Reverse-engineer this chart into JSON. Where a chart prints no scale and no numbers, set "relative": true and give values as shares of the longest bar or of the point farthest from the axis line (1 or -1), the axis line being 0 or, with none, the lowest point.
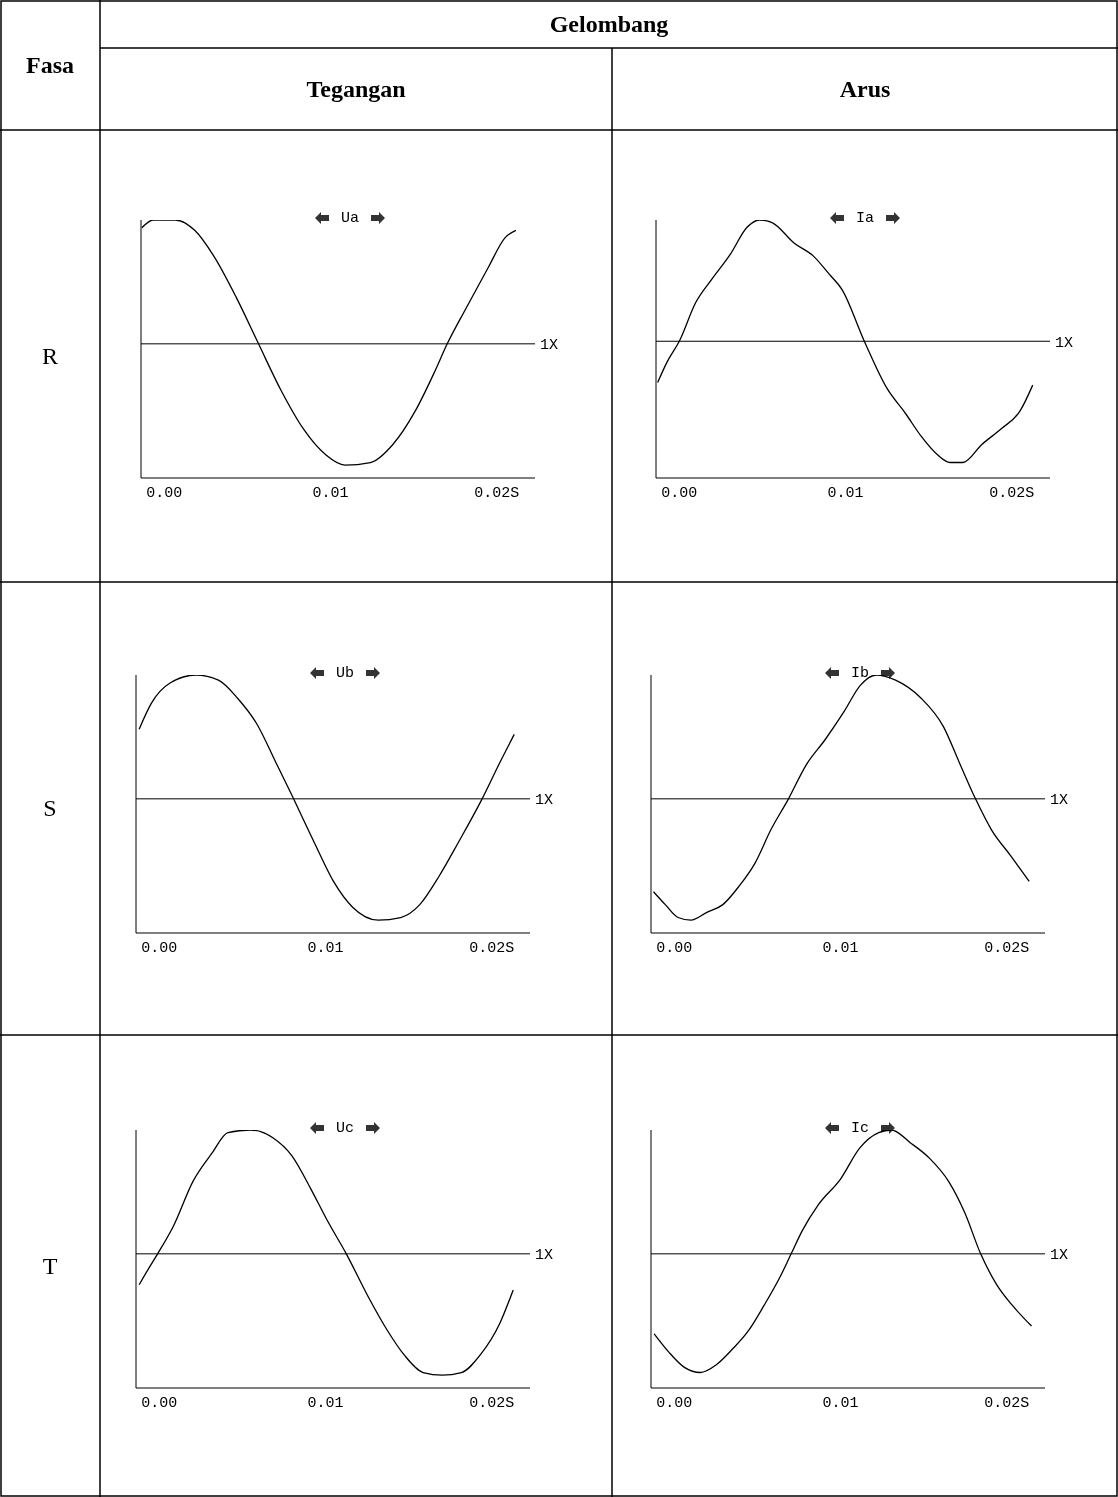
{
  "chart_data": [
    {
      "type": "other",
      "annotations": [
        "Fasa",
        "Gelombang",
        "Tegangan",
        "Arus",
        "R",
        "S",
        "T"
      ]
    },
    {
      "type": "line",
      "title": "Ua",
      "relative": true,
      "color": "#000000",
      "marker": "none",
      "grid": false,
      "xlim": [
        -0.0014,
        0.0223
      ],
      "xticks": [
        {
          "value": 0,
          "label": "0.00"
        },
        {
          "value": 0.01,
          "label": "0.01"
        },
        {
          "value": 0.02,
          "label": "0.02S"
        }
      ],
      "ref_lines": [
        {
          "axis": "y",
          "value": 0.52,
          "label": "1X"
        }
      ],
      "x": [
        -0.00135,
        -0.00067,
        0.00067,
        0.00183,
        0.00298,
        0.00433,
        0.00567,
        0.00702,
        0.00837,
        0.00971,
        0.01087,
        0.0124,
        0.01375,
        0.0151,
        0.01625,
        0.01702,
        0.01817,
        0.01952,
        0.02048,
        0.02115
      ],
      "values": [
        0.97,
        1.0,
        1.0,
        0.96,
        0.86,
        0.7,
        0.52,
        0.34,
        0.19,
        0.09,
        0.05,
        0.06,
        0.13,
        0.26,
        0.41,
        0.52,
        0.66,
        0.82,
        0.93,
        0.96
      ]
    },
    {
      "type": "line",
      "title": "Ia",
      "relative": true,
      "color": "#000000",
      "marker": "none",
      "grid": false,
      "xlim": [
        -0.0014,
        0.0223
      ],
      "xticks": [
        {
          "value": 0,
          "label": "0.00"
        },
        {
          "value": 0.01,
          "label": "0.01"
        },
        {
          "value": 0.02,
          "label": "0.02S"
        }
      ],
      "ref_lines": [
        {
          "axis": "y",
          "value": 0.53,
          "label": "1X"
        }
      ],
      "x": [
        -0.0013,
        -0.00073,
        0.0,
        0.00099,
        0.00195,
        0.0031,
        0.00405,
        0.00482,
        0.00558,
        0.00692,
        0.00807,
        0.00902,
        0.00979,
        0.01113,
        0.01247,
        0.01361,
        0.01457,
        0.01553,
        0.01629,
        0.01706,
        0.0182,
        0.01935,
        0.0205,
        0.02126
      ],
      "values": [
        0.37,
        0.45,
        0.53,
        0.68,
        0.77,
        0.87,
        0.97,
        1.0,
        0.99,
        0.91,
        0.86,
        0.79,
        0.73,
        0.53,
        0.35,
        0.25,
        0.16,
        0.09,
        0.06,
        0.06,
        0.13,
        0.19,
        0.26,
        0.36
      ]
    },
    {
      "type": "line",
      "title": "Ub",
      "relative": true,
      "color": "#000000",
      "marker": "none",
      "grid": false,
      "xlim": [
        -0.0014,
        0.0223
      ],
      "xticks": [
        {
          "value": 0,
          "label": "0.00"
        },
        {
          "value": 0.01,
          "label": "0.01"
        },
        {
          "value": 0.02,
          "label": "0.02S"
        }
      ],
      "ref_lines": [
        {
          "axis": "y",
          "value": 0.52,
          "label": "1X"
        }
      ],
      "x": [
        -0.00121,
        -0.00048,
        0.00067,
        0.00221,
        0.00356,
        0.00471,
        0.00587,
        0.00702,
        0.00808,
        0.00933,
        0.01048,
        0.01163,
        0.01317,
        0.01452,
        0.01567,
        0.01683,
        0.01798,
        0.01942,
        0.02048,
        0.02135
      ],
      "values": [
        0.79,
        0.89,
        0.97,
        1.0,
        0.98,
        0.91,
        0.81,
        0.66,
        0.52,
        0.35,
        0.2,
        0.1,
        0.05,
        0.06,
        0.11,
        0.22,
        0.35,
        0.52,
        0.66,
        0.77
      ]
    },
    {
      "type": "line",
      "title": "Ib",
      "relative": true,
      "color": "#000000",
      "marker": "none",
      "grid": false,
      "xlim": [
        -0.0014,
        0.0223
      ],
      "xticks": [
        {
          "value": 0,
          "label": "0.00"
        },
        {
          "value": 0.01,
          "label": "0.01"
        },
        {
          "value": 0.02,
          "label": "0.02S"
        }
      ],
      "ref_lines": [
        {
          "axis": "y",
          "value": 0.52,
          "label": "1X"
        }
      ],
      "x": [
        -0.00125,
        -0.00054,
        0.00023,
        0.001,
        0.00196,
        0.00292,
        0.00388,
        0.00485,
        0.00581,
        0.00687,
        0.00792,
        0.00908,
        0.01023,
        0.01119,
        0.01215,
        0.01331,
        0.01485,
        0.01619,
        0.01715,
        0.01812,
        0.01908,
        0.02023,
        0.02135
      ],
      "values": [
        0.16,
        0.11,
        0.06,
        0.05,
        0.08,
        0.11,
        0.18,
        0.27,
        0.4,
        0.52,
        0.65,
        0.75,
        0.86,
        0.96,
        1.0,
        0.98,
        0.91,
        0.8,
        0.66,
        0.52,
        0.4,
        0.3,
        0.2
      ]
    },
    {
      "type": "line",
      "title": "Uc",
      "relative": true,
      "color": "#000000",
      "marker": "none",
      "grid": false,
      "xlim": [
        -0.0014,
        0.0223
      ],
      "xticks": [
        {
          "value": 0,
          "label": "0.00"
        },
        {
          "value": 0.01,
          "label": "0.01"
        },
        {
          "value": 0.02,
          "label": "0.02S"
        }
      ],
      "ref_lines": [
        {
          "axis": "y",
          "value": 0.52,
          "label": "1X"
        }
      ],
      "x": [
        -0.00121,
        -0.00067,
        -0.0001,
        0.00087,
        0.00202,
        0.00317,
        0.00413,
        0.00548,
        0.00683,
        0.00798,
        0.00913,
        0.0101,
        0.01125,
        0.0126,
        0.01375,
        0.01471,
        0.01587,
        0.01702,
        0.01817,
        0.01933,
        0.02048,
        0.02129
      ],
      "values": [
        0.4,
        0.46,
        0.52,
        0.63,
        0.8,
        0.91,
        0.99,
        1.0,
        0.97,
        0.9,
        0.77,
        0.65,
        0.52,
        0.35,
        0.22,
        0.13,
        0.06,
        0.05,
        0.06,
        0.13,
        0.25,
        0.38
      ]
    },
    {
      "type": "line",
      "title": "Ic",
      "relative": true,
      "color": "#000000",
      "marker": "none",
      "grid": false,
      "xlim": [
        -0.0014,
        0.0223
      ],
      "xticks": [
        {
          "value": 0,
          "label": "0.00"
        },
        {
          "value": 0.01,
          "label": "0.01"
        },
        {
          "value": 0.02,
          "label": "0.02S"
        }
      ],
      "ref_lines": [
        {
          "axis": "y",
          "value": 0.52,
          "label": "1X"
        }
      ],
      "x": [
        -0.00121,
        -0.00034,
        0.00061,
        0.00157,
        0.00253,
        0.00349,
        0.00444,
        0.0054,
        0.00636,
        0.00703,
        0.0077,
        0.00866,
        0.01,
        0.01115,
        0.0123,
        0.01307,
        0.01421,
        0.01536,
        0.01651,
        0.01747,
        0.01843,
        0.0194,
        0.02034,
        0.02149
      ],
      "values": [
        0.21,
        0.14,
        0.08,
        0.06,
        0.09,
        0.15,
        0.22,
        0.32,
        0.43,
        0.52,
        0.61,
        0.71,
        0.81,
        0.93,
        0.99,
        1.0,
        0.95,
        0.89,
        0.8,
        0.68,
        0.52,
        0.4,
        0.32,
        0.24
      ]
    }
  ]
}
